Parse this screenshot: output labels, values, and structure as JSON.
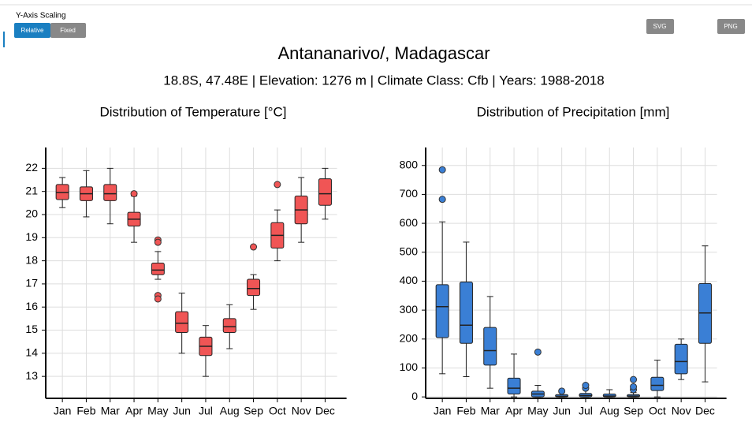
{
  "ui": {
    "scaling_label": "Y-Axis Scaling",
    "scaling_buttons": [
      "Relative",
      "Fixed"
    ],
    "export_buttons": [
      "SVG",
      "PNG"
    ]
  },
  "title": "Antananarivo/, Madagascar",
  "subtitle": "18.8S, 47.48E | Elevation: 1276 m | Climate Class: Cfb | Years: 1988-2018",
  "chart_data": [
    {
      "type": "box",
      "title": "Distribution of Temperature [°C]",
      "color": "#f05555",
      "categories": [
        "Jan",
        "Feb",
        "Mar",
        "Apr",
        "May",
        "Jun",
        "Jul",
        "Aug",
        "Sep",
        "Oct",
        "Nov",
        "Dec"
      ],
      "boxes": [
        {
          "min": 20.3,
          "q1": 20.65,
          "median": 20.95,
          "q3": 21.3,
          "max": 21.6,
          "outliers": []
        },
        {
          "min": 19.9,
          "q1": 20.6,
          "median": 20.9,
          "q3": 21.2,
          "max": 21.9,
          "outliers": []
        },
        {
          "min": 19.6,
          "q1": 20.6,
          "median": 20.9,
          "q3": 21.3,
          "max": 22.0,
          "outliers": []
        },
        {
          "min": 18.8,
          "q1": 19.5,
          "median": 19.8,
          "q3": 20.1,
          "max": 20.8,
          "outliers": [
            20.9
          ]
        },
        {
          "min": 17.2,
          "q1": 17.4,
          "median": 17.6,
          "q3": 17.9,
          "max": 18.4,
          "outliers": [
            18.9,
            18.8,
            16.5,
            16.35
          ]
        },
        {
          "min": 14.0,
          "q1": 14.9,
          "median": 15.3,
          "q3": 15.8,
          "max": 16.6,
          "outliers": []
        },
        {
          "min": 13.0,
          "q1": 13.9,
          "median": 14.3,
          "q3": 14.7,
          "max": 15.2,
          "outliers": []
        },
        {
          "min": 14.2,
          "q1": 14.9,
          "median": 15.15,
          "q3": 15.5,
          "max": 16.1,
          "outliers": []
        },
        {
          "min": 15.9,
          "q1": 16.5,
          "median": 16.8,
          "q3": 17.2,
          "max": 17.4,
          "outliers": [
            18.6
          ]
        },
        {
          "min": 18.0,
          "q1": 18.55,
          "median": 19.1,
          "q3": 19.65,
          "max": 20.2,
          "outliers": [
            21.3
          ]
        },
        {
          "min": 18.8,
          "q1": 19.6,
          "median": 20.2,
          "q3": 20.8,
          "max": 21.6,
          "outliers": []
        },
        {
          "min": 19.8,
          "q1": 20.4,
          "median": 20.9,
          "q3": 21.55,
          "max": 22.0,
          "outliers": []
        }
      ],
      "ylim": [
        12.05,
        22.9
      ],
      "yticks": [
        13,
        14,
        15,
        16,
        17,
        18,
        19,
        20,
        21,
        22
      ],
      "grid": true
    },
    {
      "type": "box",
      "title": "Distribution of Precipitation [mm]",
      "color": "#3a7fd5",
      "categories": [
        "Jan",
        "Feb",
        "Mar",
        "Apr",
        "May",
        "Jun",
        "Jul",
        "Aug",
        "Sep",
        "Oct",
        "Nov",
        "Dec"
      ],
      "boxes": [
        {
          "min": 80,
          "q1": 205,
          "median": 312,
          "q3": 388,
          "max": 605,
          "outliers": [
            785,
            683
          ]
        },
        {
          "min": 70,
          "q1": 185,
          "median": 248,
          "q3": 397,
          "max": 535,
          "outliers": []
        },
        {
          "min": 30,
          "q1": 110,
          "median": 160,
          "q3": 240,
          "max": 347,
          "outliers": []
        },
        {
          "min": 0,
          "q1": 10,
          "median": 30,
          "q3": 65,
          "max": 148,
          "outliers": []
        },
        {
          "min": 0,
          "q1": 0,
          "median": 10,
          "q3": 20,
          "max": 40,
          "outliers": [
            155
          ]
        },
        {
          "min": 0,
          "q1": 0,
          "median": 2,
          "q3": 8,
          "max": 15,
          "outliers": [
            20
          ]
        },
        {
          "min": 0,
          "q1": 0,
          "median": 5,
          "q3": 12,
          "max": 25,
          "outliers": [
            30,
            40
          ]
        },
        {
          "min": 0,
          "q1": 0,
          "median": 3,
          "q3": 10,
          "max": 25,
          "outliers": []
        },
        {
          "min": 0,
          "q1": 0,
          "median": 3,
          "q3": 8,
          "max": 15,
          "outliers": [
            25,
            35,
            60
          ]
        },
        {
          "min": 0,
          "q1": 22,
          "median": 40,
          "q3": 68,
          "max": 127,
          "outliers": []
        },
        {
          "min": 60,
          "q1": 80,
          "median": 122,
          "q3": 182,
          "max": 200,
          "outliers": []
        },
        {
          "min": 52,
          "q1": 185,
          "median": 290,
          "q3": 392,
          "max": 522,
          "outliers": []
        }
      ],
      "ylim": [
        -5,
        862
      ],
      "yticks": [
        0,
        100,
        200,
        300,
        400,
        500,
        600,
        700,
        800
      ],
      "grid": true
    }
  ]
}
